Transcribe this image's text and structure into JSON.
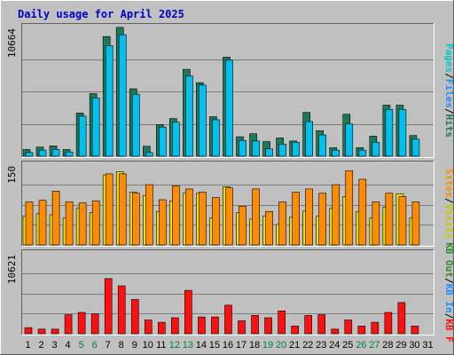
{
  "chart_data": {
    "title": "Daily usage for April 2025",
    "days": [
      "1",
      "2",
      "3",
      "4",
      "5",
      "6",
      "7",
      "8",
      "9",
      "10",
      "11",
      "12",
      "13",
      "14",
      "15",
      "16",
      "17",
      "18",
      "19",
      "20",
      "21",
      "22",
      "23",
      "24",
      "25",
      "26",
      "27",
      "28",
      "29",
      "30",
      "31"
    ],
    "weekend_days": [
      "5",
      "6",
      "12",
      "13",
      "19",
      "20",
      "26",
      "27"
    ],
    "colors": {
      "hits": "#1b7a5a",
      "files": "#00c0f0",
      "pages": "#00c8c8",
      "visits": "#f0e000",
      "sites": "#ff8c00",
      "kbytes": "#ff1010",
      "kb_in": "#1e90ff",
      "kb_out": "#2e8b2e",
      "weekday_tick": "#000000",
      "weekend_tick": "#008040",
      "title": "#0000c8"
    },
    "panels": [
      {
        "type": "bar",
        "name": "hits_files",
        "ymax": 10664,
        "ytick": "10664",
        "labels": [
          {
            "text": "Hits",
            "color": "#1b7a5a"
          },
          {
            "text": "/",
            "color": "#000000"
          },
          {
            "text": "Files",
            "color": "#1e90ff"
          },
          {
            "text": "/",
            "color": "#000000"
          },
          {
            "text": "Pages",
            "color": "#00c8c8"
          }
        ],
        "series": [
          {
            "name": "Hits",
            "color": "#1b7a5a",
            "values": [
              550,
              750,
              850,
              550,
              3550,
              5150,
              9850,
              10600,
              5550,
              820,
              2600,
              3100,
              7150,
              6050,
              3250,
              8150,
              1600,
              1850,
              1200,
              1500,
              1250,
              3600,
              2100,
              700,
              3450,
              700,
              1650,
              4200,
              4200,
              1700,
              0
            ]
          },
          {
            "name": "Files",
            "color": "#00c0f0",
            "values": [
              300,
              500,
              550,
              350,
              3300,
              4800,
              9100,
              10000,
              5100,
              300,
              2400,
              2800,
              6600,
              5850,
              3000,
              7900,
              1300,
              1250,
              600,
              1000,
              1150,
              2850,
              1750,
              500,
              2650,
              500,
              1150,
              3850,
              3850,
              1400,
              0
            ]
          }
        ]
      },
      {
        "type": "bar",
        "name": "visits_sites",
        "ymax": 150,
        "ytick": "150",
        "labels": [
          {
            "text": "Visits",
            "color": "#c8c800"
          },
          {
            "text": "/",
            "color": "#000000"
          },
          {
            "text": "Sites",
            "color": "#ff8c00"
          }
        ],
        "series": [
          {
            "name": "Visits",
            "color": "#f0e000",
            "values": [
              54,
              58,
              56,
              50,
              68,
              60,
              130,
              136,
              98,
              92,
              62,
              82,
              96,
              96,
              50,
              108,
              60,
              48,
              54,
              38,
              52,
              63,
              54,
              68,
              90,
              62,
              50,
              70,
              95,
              50,
              0
            ]
          },
          {
            "name": "Sites",
            "color": "#ff8c00",
            "values": [
              80,
              83,
              100,
              80,
              78,
              82,
              132,
              132,
              96,
              112,
              84,
              110,
              104,
              98,
              88,
              106,
              72,
              104,
              62,
              80,
              98,
              104,
              96,
              112,
              138,
              122,
              80,
              96,
              90,
              80,
              0
            ]
          }
        ]
      },
      {
        "type": "bar",
        "name": "kbytes",
        "ymax": 10621,
        "ytick": "10621",
        "labels": [
          {
            "text": "KB F",
            "color": "#ff1010"
          },
          {
            "text": "/",
            "color": "#000000"
          },
          {
            "text": "KB In",
            "color": "#1e90ff"
          },
          {
            "text": "/",
            "color": "#000000"
          },
          {
            "text": "KB Out",
            "color": "#2e8b2e"
          }
        ],
        "series": [
          {
            "name": "KB F",
            "color": "#ff1010",
            "values": [
              800,
              600,
              600,
              2500,
              2800,
              2600,
              7250,
              6300,
              4500,
              1800,
              1500,
              2100,
              5700,
              2200,
              2200,
              3750,
              1700,
              2400,
              2100,
              3000,
              1000,
              2400,
              2500,
              600,
              1800,
              1000,
              1500,
              2800,
              4100,
              1000,
              0
            ]
          }
        ]
      }
    ]
  }
}
